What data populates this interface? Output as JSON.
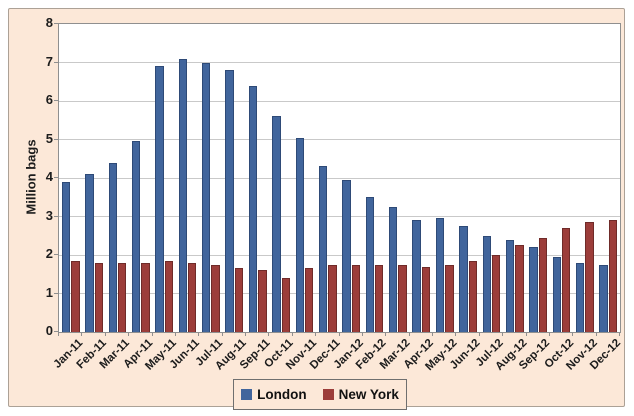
{
  "figure": {
    "background_color": "#FCE8D8",
    "frame_border_color": "#ACA196",
    "plot_background": "#FFFFFF",
    "gridline_color": "#C9C9C9"
  },
  "chart_data": {
    "type": "bar",
    "ylabel": "Million bags",
    "xlabel": "",
    "ylim": [
      0,
      8
    ],
    "ytick_step": 1,
    "yticks": [
      0,
      1,
      2,
      3,
      4,
      5,
      6,
      7,
      8
    ],
    "grid": "horizontal",
    "legend_position": "bottom-center",
    "categories": [
      "Jan-11",
      "Feb-11",
      "Mar-11",
      "Apr-11",
      "May-11",
      "Jun-11",
      "Jul-11",
      "Aug-11",
      "Sep-11",
      "Oct-11",
      "Nov-11",
      "Dec-11",
      "Jan-12",
      "Feb-12",
      "Mar-12",
      "Apr-12",
      "May-12",
      "Jun-12",
      "Jul-12",
      "Aug-12",
      "Sep-12",
      "Oct-12",
      "Nov-12",
      "Dec-12"
    ],
    "series": [
      {
        "name": "London",
        "color": "#41659C",
        "border_color": "#2E4A77",
        "values": [
          3.9,
          4.1,
          4.4,
          4.95,
          6.9,
          7.1,
          7.0,
          6.8,
          6.4,
          5.6,
          5.05,
          4.3,
          3.95,
          3.5,
          3.25,
          2.9,
          2.95,
          2.75,
          2.5,
          2.4,
          2.2,
          1.95,
          1.8,
          1.75
        ]
      },
      {
        "name": "New York",
        "color": "#9C3D3A",
        "border_color": "#6F2B29",
        "values": [
          1.85,
          1.8,
          1.8,
          1.8,
          1.85,
          1.8,
          1.75,
          1.65,
          1.6,
          1.4,
          1.65,
          1.75,
          1.75,
          1.75,
          1.75,
          1.7,
          1.75,
          1.85,
          2.0,
          2.25,
          2.45,
          2.7,
          2.85,
          2.9
        ]
      }
    ]
  }
}
